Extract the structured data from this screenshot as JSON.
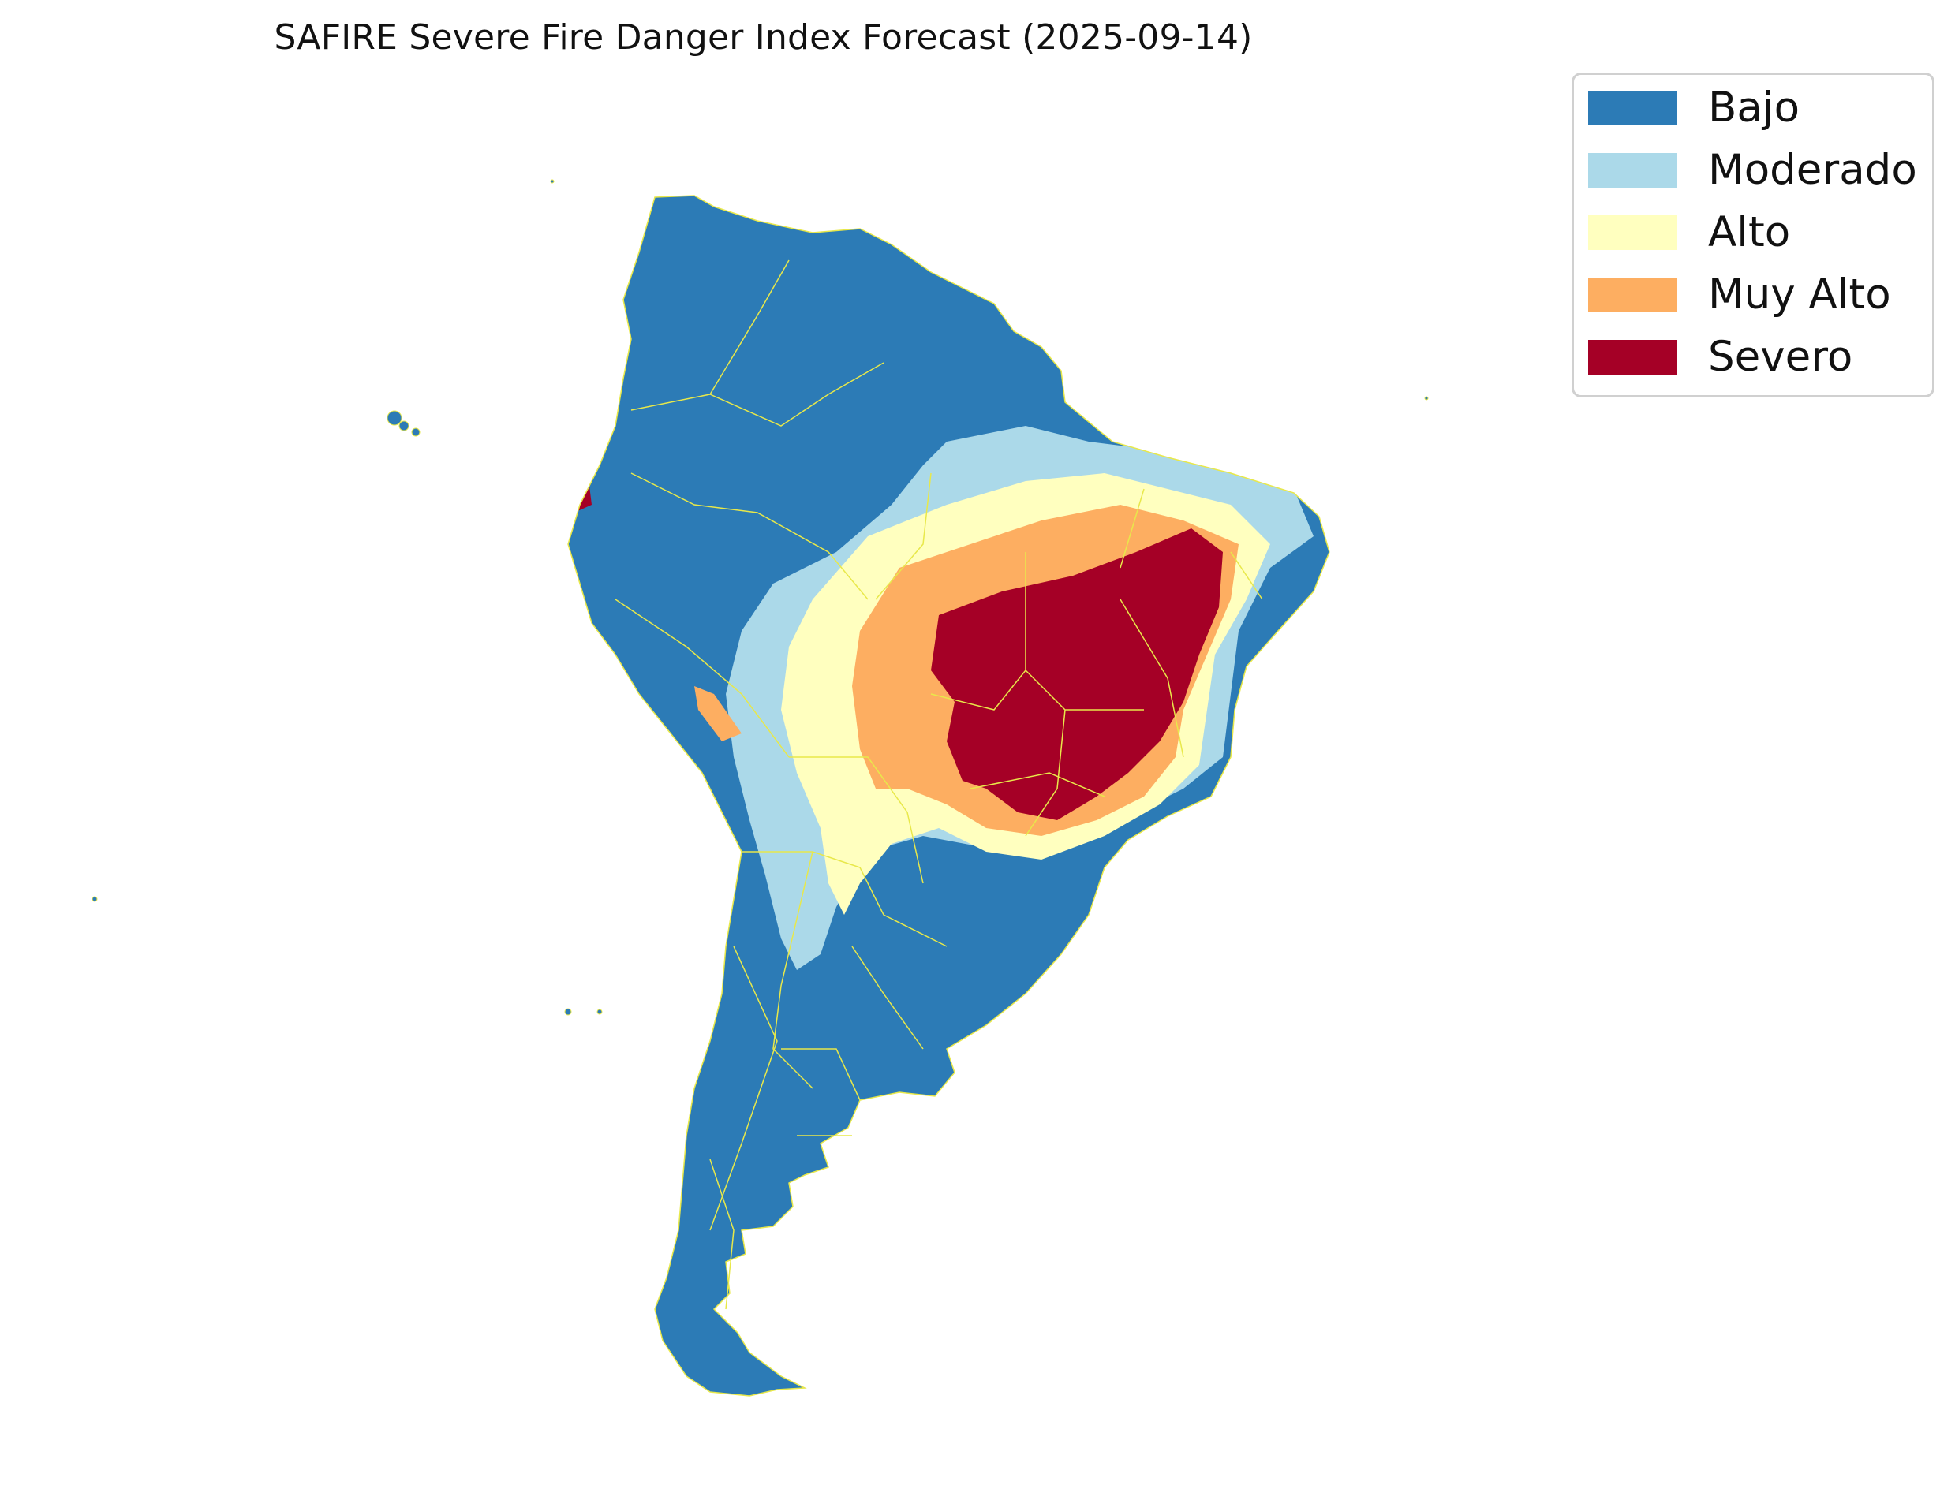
{
  "title": "SAFIRE Severe Fire Danger Index Forecast (2025-09-14)",
  "legend": {
    "items": [
      {
        "label": "Bajo",
        "color": "#2c7bb6"
      },
      {
        "label": "Moderado",
        "color": "#abd9e9"
      },
      {
        "label": "Alto",
        "color": "#ffffbf"
      },
      {
        "label": "Muy Alto",
        "color": "#fdae61"
      },
      {
        "label": "Severo",
        "color": "#a50026"
      }
    ]
  },
  "colors": {
    "borders": "#e8e84a",
    "background": "#ffffff"
  }
}
